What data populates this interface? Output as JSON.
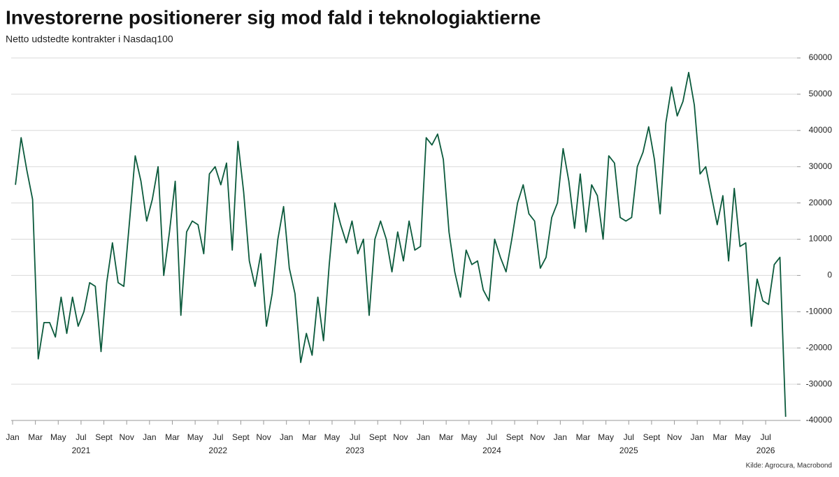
{
  "chart_data": {
    "type": "line",
    "title": "Investorerne positionerer sig mod fald i teknologiaktierne",
    "subtitle": "Netto udstedte kontrakter i Nasdaq100",
    "source": "Kilde: Agrocura, Macrobond",
    "x": [
      "2021-01",
      "2021-01",
      "2021-02",
      "2021-02",
      "2021-03",
      "2021-03",
      "2021-04",
      "2021-04",
      "2021-05",
      "2021-05",
      "2021-06",
      "2021-06",
      "2021-07",
      "2021-07",
      "2021-08",
      "2021-08",
      "2021-09",
      "2021-09",
      "2021-10",
      "2021-10",
      "2021-11",
      "2021-11",
      "2021-12",
      "2021-12",
      "2022-01",
      "2022-01",
      "2022-02",
      "2022-02",
      "2022-03",
      "2022-03",
      "2022-04",
      "2022-04",
      "2022-05",
      "2022-05",
      "2022-06",
      "2022-06",
      "2022-07",
      "2022-07",
      "2022-08",
      "2022-08",
      "2022-09",
      "2022-09",
      "2022-10",
      "2022-10",
      "2022-11",
      "2022-11",
      "2022-12",
      "2022-12",
      "2023-01",
      "2023-01",
      "2023-02",
      "2023-02",
      "2023-03",
      "2023-03",
      "2023-04",
      "2023-04",
      "2023-05",
      "2023-05",
      "2023-06",
      "2023-06",
      "2023-07",
      "2023-07",
      "2023-08",
      "2023-08",
      "2023-09",
      "2023-09",
      "2023-10",
      "2023-10",
      "2023-11",
      "2023-11",
      "2023-12",
      "2023-12",
      "2024-01",
      "2024-01",
      "2024-02",
      "2024-02",
      "2024-03",
      "2024-03",
      "2024-04",
      "2024-04",
      "2024-05",
      "2024-05",
      "2024-06",
      "2024-06",
      "2024-07",
      "2024-07",
      "2024-08",
      "2024-08",
      "2024-09",
      "2024-09",
      "2024-10",
      "2024-10",
      "2024-11",
      "2024-11",
      "2024-12",
      "2024-12",
      "2025-01",
      "2025-01",
      "2025-02",
      "2025-02",
      "2025-03",
      "2025-03",
      "2025-04",
      "2025-04",
      "2025-05",
      "2025-05",
      "2025-06",
      "2025-06",
      "2025-07",
      "2025-07",
      "2025-08",
      "2025-08",
      "2025-09",
      "2025-09",
      "2025-10",
      "2025-10",
      "2025-11",
      "2025-11",
      "2025-12",
      "2025-12",
      "2026-01",
      "2026-01",
      "2026-02",
      "2026-02",
      "2026-03",
      "2026-03",
      "2026-04",
      "2026-04",
      "2026-05",
      "2026-05",
      "2026-06",
      "2026-06",
      "2026-07",
      "2026-07",
      "2026-08",
      "2026-08"
    ],
    "series": [
      {
        "name": "Netto udstedte kontrakter",
        "color": "#0b5a3c",
        "values": [
          25000,
          38000,
          29000,
          21000,
          -23000,
          -13000,
          -13000,
          -17000,
          -6000,
          -16000,
          -6000,
          -14000,
          -10000,
          -2000,
          -3000,
          -21000,
          -2000,
          9000,
          -2000,
          -3000,
          15000,
          33000,
          26000,
          15000,
          21000,
          30000,
          0,
          12000,
          26000,
          -11000,
          12000,
          15000,
          14000,
          6000,
          28000,
          30000,
          25000,
          31000,
          7000,
          37000,
          23000,
          4000,
          -3000,
          6000,
          -14000,
          -5000,
          10000,
          19000,
          2000,
          -5000,
          -24000,
          -16000,
          -22000,
          -6000,
          -18000,
          3000,
          20000,
          14000,
          9000,
          15000,
          6000,
          10000,
          -11000,
          10000,
          15000,
          10000,
          1000,
          12000,
          4000,
          15000,
          7000,
          8000,
          38000,
          36000,
          39000,
          32000,
          12000,
          1000,
          -6000,
          7000,
          3000,
          4000,
          -4000,
          -7000,
          10000,
          5000,
          1000,
          10000,
          20000,
          25000,
          17000,
          15000,
          2000,
          5000,
          16000,
          20000,
          35000,
          26000,
          13000,
          28000,
          12000,
          25000,
          22000,
          10000,
          33000,
          31000,
          16000,
          15000,
          16000,
          30000,
          34000,
          41000,
          32000,
          17000,
          42000,
          52000,
          44000,
          48000,
          56000,
          47000,
          28000,
          30000,
          22000,
          14000,
          22000,
          4000,
          24000,
          8000,
          9000,
          -14000,
          -1000,
          -7000,
          -8000,
          3000,
          5000,
          -39000
        ]
      }
    ],
    "ylim": [
      -40000,
      60000
    ],
    "yticks": [
      -40000,
      -30000,
      -20000,
      -10000,
      0,
      10000,
      20000,
      30000,
      40000,
      50000,
      60000
    ],
    "grid": true,
    "xticks": [
      {
        "value": "2021-01",
        "label": "Jan"
      },
      {
        "value": "2021-03",
        "label": "Mar"
      },
      {
        "value": "2021-05",
        "label": "May"
      },
      {
        "value": "2021-07",
        "label": "Jul"
      },
      {
        "value": "2021-09",
        "label": "Sept"
      },
      {
        "value": "2021-11",
        "label": "Nov"
      },
      {
        "value": "2022-01",
        "label": "Jan"
      },
      {
        "value": "2022-03",
        "label": "Mar"
      },
      {
        "value": "2022-05",
        "label": "May"
      },
      {
        "value": "2022-07",
        "label": "Jul"
      },
      {
        "value": "2022-09",
        "label": "Sept"
      },
      {
        "value": "2022-11",
        "label": "Nov"
      },
      {
        "value": "2023-01",
        "label": "Jan"
      },
      {
        "value": "2023-03",
        "label": "Mar"
      },
      {
        "value": "2023-05",
        "label": "May"
      },
      {
        "value": "2023-07",
        "label": "Jul"
      },
      {
        "value": "2023-09",
        "label": "Sept"
      },
      {
        "value": "2023-11",
        "label": "Nov"
      },
      {
        "value": "2024-01",
        "label": "Jan"
      },
      {
        "value": "2024-03",
        "label": "Mar"
      },
      {
        "value": "2024-05",
        "label": "May"
      },
      {
        "value": "2024-07",
        "label": "Jul"
      },
      {
        "value": "2024-09",
        "label": "Sept"
      },
      {
        "value": "2024-11",
        "label": "Nov"
      },
      {
        "value": "2025-01",
        "label": "Jan"
      },
      {
        "value": "2025-03",
        "label": "Mar"
      },
      {
        "value": "2025-05",
        "label": "May"
      },
      {
        "value": "2025-07",
        "label": "Jul"
      },
      {
        "value": "2025-09",
        "label": "Sept"
      },
      {
        "value": "2025-11",
        "label": "Nov"
      },
      {
        "value": "2026-01",
        "label": "Jan"
      },
      {
        "value": "2026-03",
        "label": "Mar"
      },
      {
        "value": "2026-05",
        "label": "May"
      },
      {
        "value": "2026-07",
        "label": "Jul"
      }
    ],
    "year_labels": [
      {
        "value": "2021-07",
        "label": "2021"
      },
      {
        "value": "2022-07",
        "label": "2022"
      },
      {
        "value": "2023-07",
        "label": "2023"
      },
      {
        "value": "2024-07",
        "label": "2024"
      },
      {
        "value": "2025-07",
        "label": "2025"
      },
      {
        "value": "2026-07",
        "label": "2026"
      }
    ]
  }
}
